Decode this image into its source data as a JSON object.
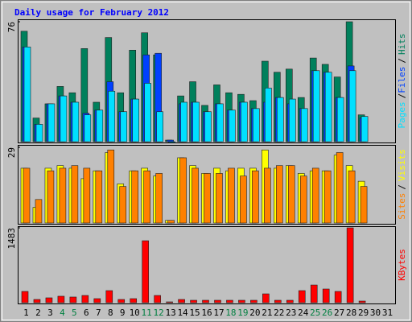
{
  "chart_data": [
    {
      "type": "bar",
      "title": "Daily usage for February 2012",
      "ylim": [
        0,
        76
      ],
      "yticks": [
        76
      ],
      "legend_separator": "/",
      "series": [
        {
          "name": "Hits",
          "color": "#00805c",
          "values": [
            70,
            15,
            24,
            35,
            31,
            59,
            25,
            66,
            31,
            58,
            69,
            55,
            1,
            29,
            38,
            23,
            36,
            31,
            30,
            26,
            51,
            44,
            46,
            28,
            53,
            49,
            41,
            76,
            17,
            null,
            null
          ]
        },
        {
          "name": "Files",
          "color": "#0040ff",
          "values": [
            60,
            11,
            24,
            29,
            25,
            18,
            20,
            38,
            19,
            27,
            55,
            56,
            1,
            24,
            25,
            19,
            24,
            20,
            25,
            21,
            25,
            28,
            24,
            21,
            45,
            44,
            28,
            48,
            15,
            null,
            null
          ]
        },
        {
          "name": "Pages",
          "color": "#00e0ff",
          "values": [
            60,
            11,
            24,
            29,
            25,
            17,
            20,
            32,
            19,
            27,
            37,
            19,
            0,
            25,
            25,
            19,
            24,
            20,
            25,
            21,
            34,
            28,
            27,
            21,
            45,
            44,
            28,
            45,
            16,
            null,
            null
          ]
        }
      ]
    },
    {
      "type": "bar",
      "ylim": [
        0,
        29
      ],
      "yticks": [
        29
      ],
      "legend_separator": "/",
      "series": [
        {
          "name": "Visits",
          "color": "#ffff00",
          "values": [
            21,
            6,
            21,
            22,
            21,
            17,
            20,
            27,
            15,
            20,
            21,
            18,
            1,
            25,
            22,
            19,
            21,
            20,
            21,
            21,
            28,
            21,
            22,
            19,
            20,
            20,
            26,
            22,
            16,
            null,
            null
          ]
        },
        {
          "name": "Sites",
          "color": "#ff8000",
          "values": [
            21,
            9,
            20,
            21,
            22,
            21,
            20,
            28,
            14,
            20,
            20,
            19,
            1,
            25,
            21,
            19,
            19,
            21,
            18,
            20,
            21,
            22,
            22,
            18,
            21,
            20,
            27,
            20,
            14,
            null,
            null
          ]
        }
      ]
    },
    {
      "type": "bar",
      "ylim": [
        0,
        1483
      ],
      "yticks": [
        1483
      ],
      "categories": [
        "1",
        "2",
        "3",
        "4",
        "5",
        "6",
        "7",
        "8",
        "9",
        "10",
        "11",
        "12",
        "13",
        "14",
        "15",
        "16",
        "17",
        "18",
        "19",
        "20",
        "21",
        "22",
        "23",
        "24",
        "25",
        "26",
        "27",
        "28",
        "29",
        "30",
        "31"
      ],
      "category_colors": [
        "#000",
        "#000",
        "#000",
        "#008040",
        "#008040",
        "#000",
        "#000",
        "#000",
        "#000",
        "#000",
        "#008040",
        "#008040",
        "#000",
        "#000",
        "#000",
        "#000",
        "#000",
        "#008040",
        "#008040",
        "#000",
        "#000",
        "#000",
        "#000",
        "#000",
        "#008040",
        "#008040",
        "#000",
        "#000",
        "#000",
        "#000",
        "#000"
      ],
      "series": [
        {
          "name": "KBytes",
          "color": "#ff0000",
          "values": [
            223,
            64,
            96,
            128,
            112,
            143,
            80,
            239,
            64,
            80,
            1227,
            143,
            16,
            64,
            48,
            48,
            48,
            48,
            48,
            48,
            175,
            48,
            48,
            239,
            350,
            271,
            223,
            1483,
            32,
            null,
            null
          ]
        }
      ]
    }
  ]
}
